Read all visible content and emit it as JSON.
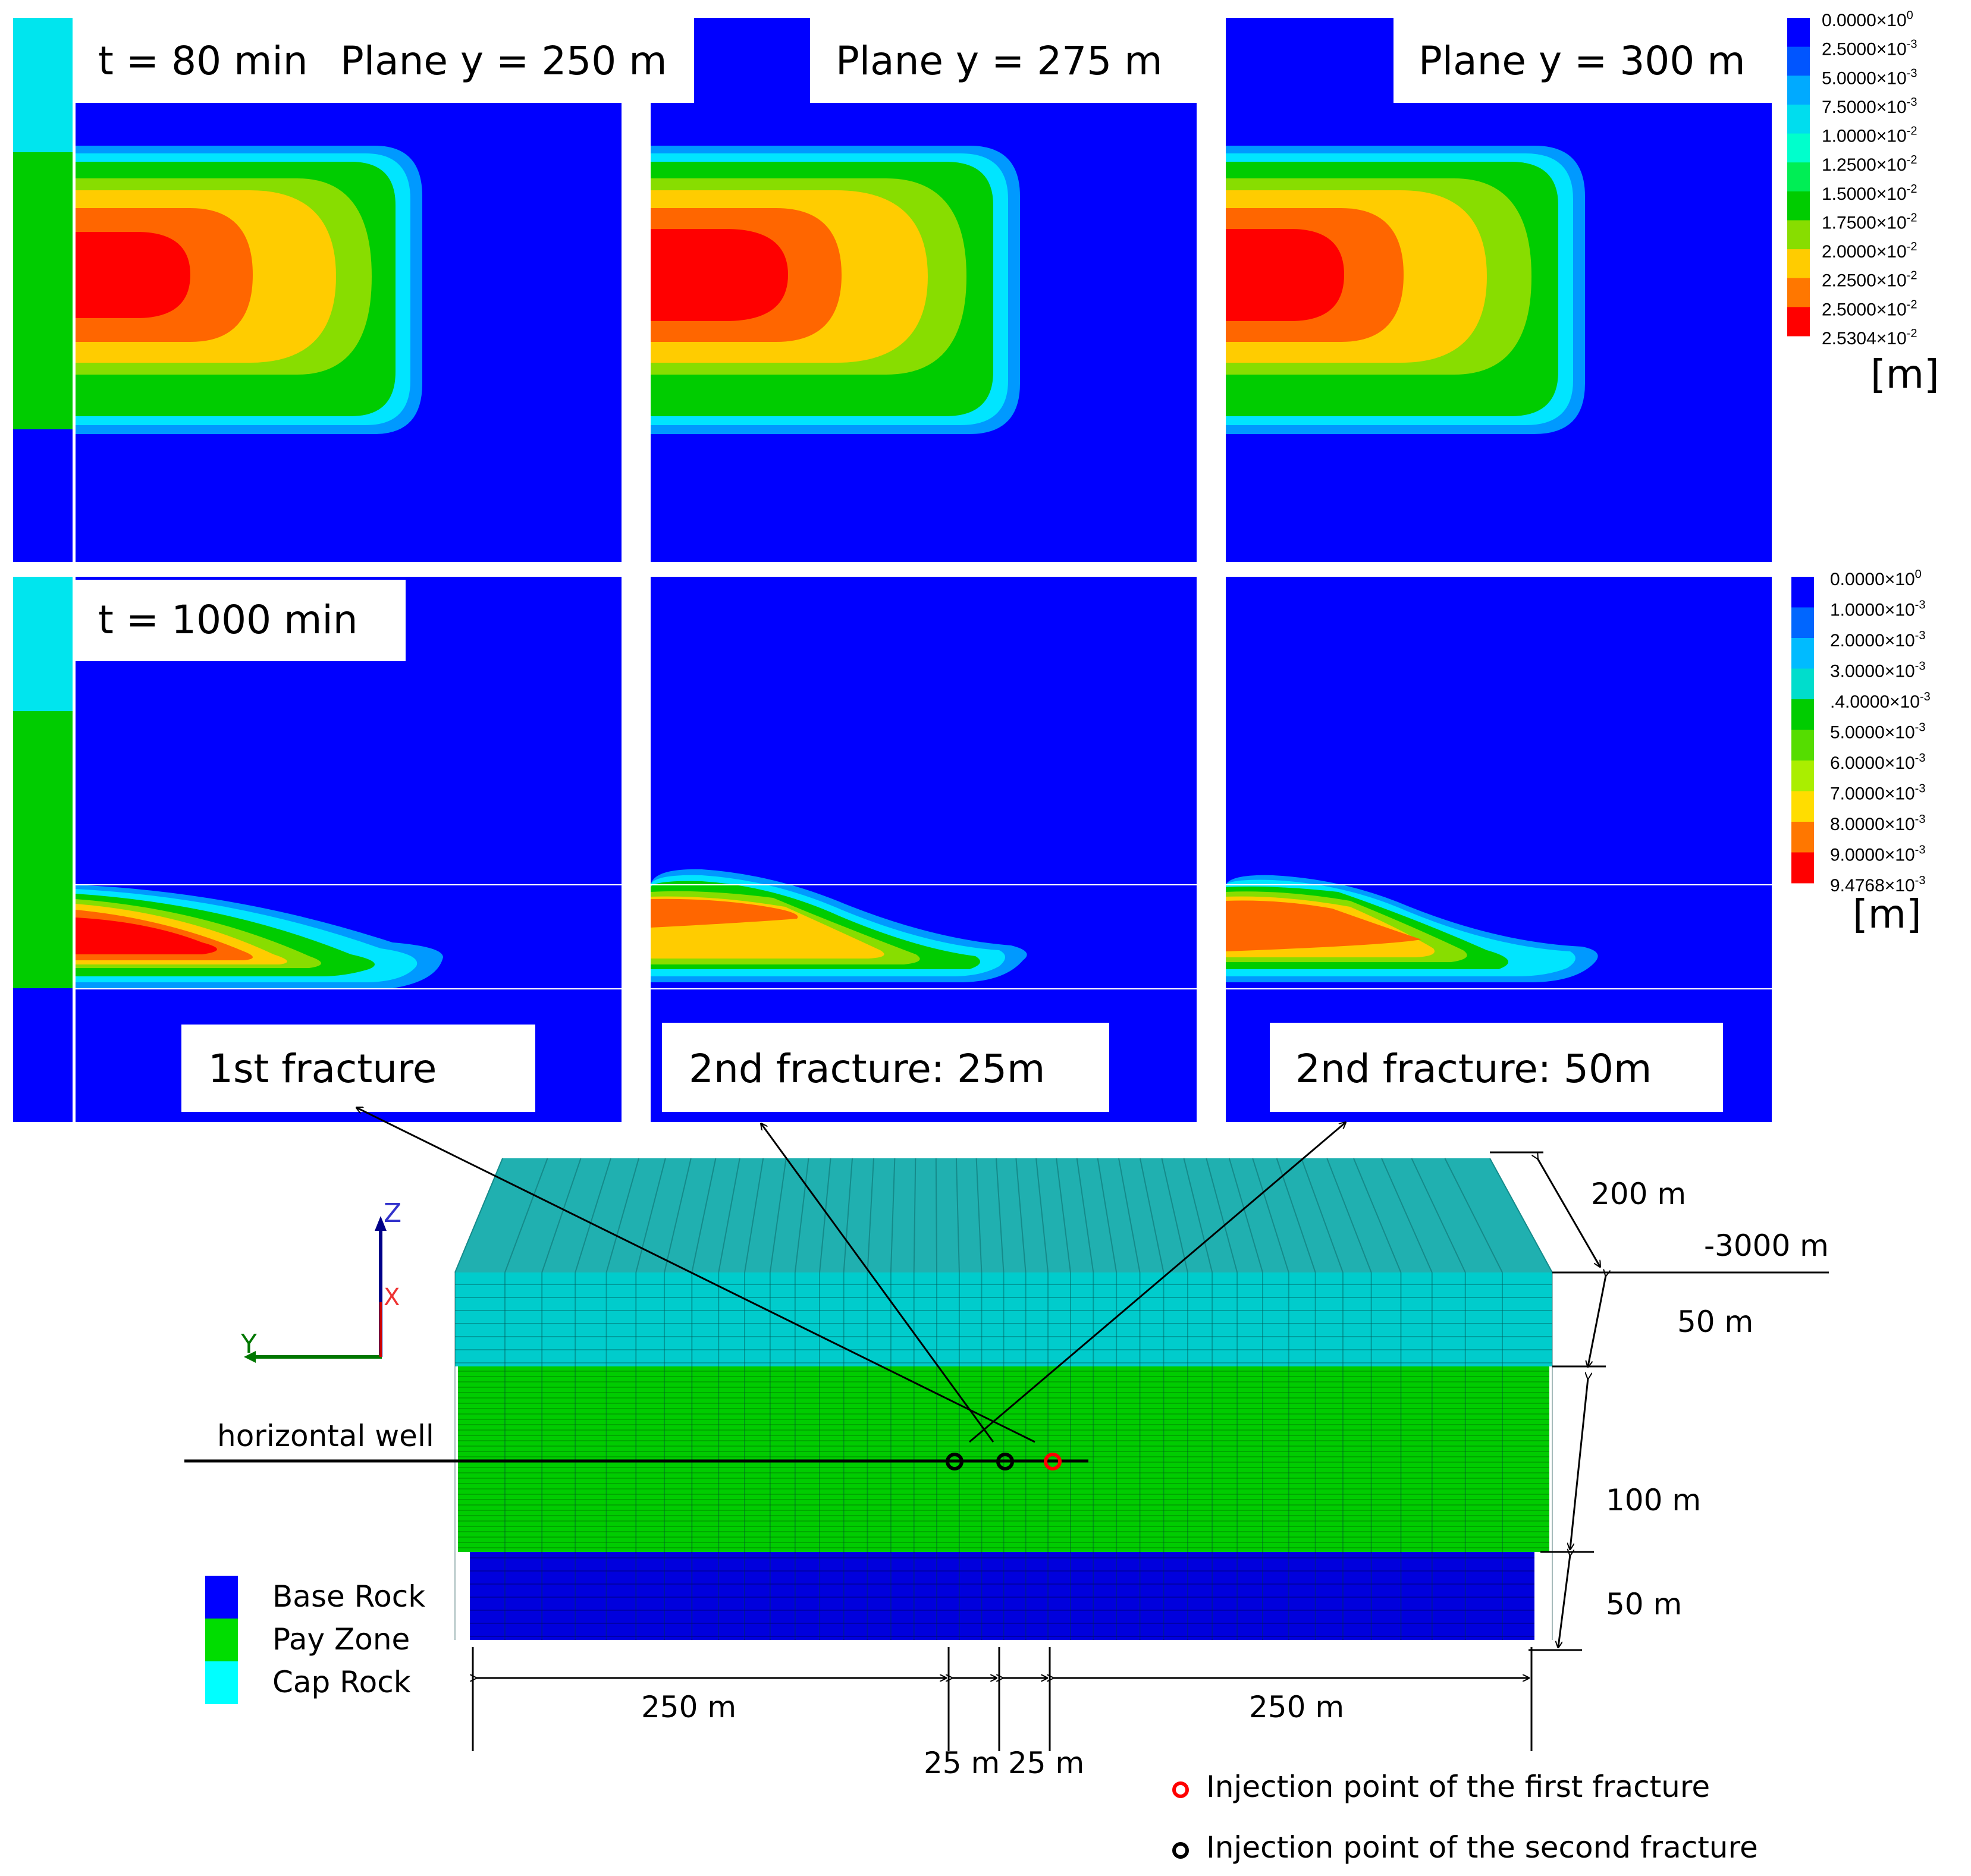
{
  "top_row": {
    "time_label": "t = 80 min",
    "planes": [
      "Plane y = 250 m",
      "Plane y = 275 m",
      "Plane y = 300 m"
    ]
  },
  "bottom_row": {
    "time_label": "t = 1000 min",
    "fracture_labels": [
      "1st fracture",
      "2nd fracture: 25m",
      "2nd fracture: 50m"
    ]
  },
  "colorbar_top": {
    "unit": "[m]",
    "colors": [
      "#0000ff",
      "#0055ff",
      "#00aaff",
      "#00ddee",
      "#00ffcc",
      "#00ee55",
      "#00cc00",
      "#88dd00",
      "#ffcc00",
      "#ff7700",
      "#ff0000"
    ],
    "ticks": [
      {
        "m": "0.0000",
        "e": "0"
      },
      {
        "m": "2.5000",
        "e": "-3"
      },
      {
        "m": "5.0000",
        "e": "-3"
      },
      {
        "m": "7.5000",
        "e": "-3"
      },
      {
        "m": "1.0000",
        "e": "-2"
      },
      {
        "m": "1.2500",
        "e": "-2"
      },
      {
        "m": "1.5000",
        "e": "-2"
      },
      {
        "m": "1.7500",
        "e": "-2"
      },
      {
        "m": "2.0000",
        "e": "-2"
      },
      {
        "m": "2.2500",
        "e": "-2"
      },
      {
        "m": "2.5000",
        "e": "-2"
      },
      {
        "m": "2.5304",
        "e": "-2"
      }
    ]
  },
  "colorbar_bottom": {
    "unit": "[m]",
    "colors": [
      "#0000ff",
      "#0066ff",
      "#00bbff",
      "#00ddcc",
      "#00cc00",
      "#55dd00",
      "#aaee00",
      "#ffdd00",
      "#ff7700",
      "#ff0000"
    ],
    "ticks": [
      {
        "m": "0.0000",
        "e": "0"
      },
      {
        "m": "1.0000",
        "e": "-3"
      },
      {
        "m": "2.0000",
        "e": "-3"
      },
      {
        "m": "3.0000",
        "e": "-3"
      },
      {
        "m": ".4.0000",
        "e": "-3"
      },
      {
        "m": "5.0000",
        "e": "-3"
      },
      {
        "m": "6.0000",
        "e": "-3"
      },
      {
        "m": "7.0000",
        "e": "-3"
      },
      {
        "m": "8.0000",
        "e": "-3"
      },
      {
        "m": "9.0000",
        "e": "-3"
      },
      {
        "m": "9.4768",
        "e": "-3"
      }
    ]
  },
  "contour_colors": {
    "blue": "#0000ff",
    "sky": "#0099ff",
    "cyan": "#00e5ff",
    "green": "#00cc00",
    "yellowgreen": "#88dd00",
    "yellow": "#ffcc00",
    "orange": "#ff6600",
    "red": "#ff0000"
  },
  "model": {
    "axis_labels": {
      "z": "Z",
      "x": "X",
      "y": "Y"
    },
    "well_label": "horizontal well",
    "dims": {
      "depth": "200 m",
      "elevation": "-3000 m",
      "cap": "50 m",
      "pay": "100 m",
      "base": "50 m",
      "left": "250 m",
      "right": "250 m",
      "gap1": "25 m",
      "gap2": "25 m"
    },
    "legend": [
      {
        "label": "Base Rock",
        "color": "#0000ff"
      },
      {
        "label": "Pay Zone",
        "color": "#00dd00"
      },
      {
        "label": "Cap Rock",
        "color": "#00ffff"
      }
    ],
    "injection_legend": [
      {
        "label": "Injection point of the first fracture",
        "color": "#ff0000"
      },
      {
        "label": "Injection point of the second fracture",
        "color": "#000000"
      }
    ],
    "layer_colors": {
      "cap": "#00cccc",
      "cap_top": "#20b0b0",
      "pay": "#00cc00",
      "base": "#0000dd"
    }
  }
}
